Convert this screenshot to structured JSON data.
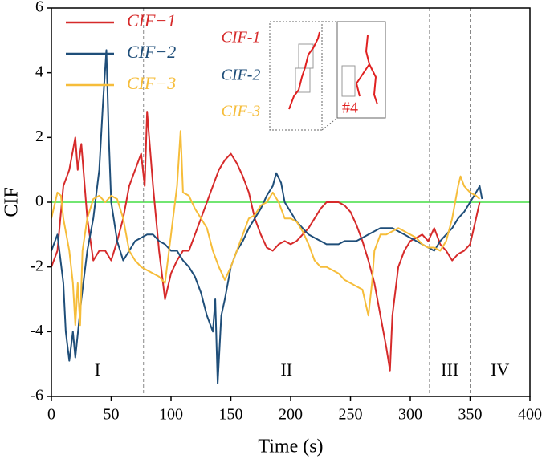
{
  "chart_data": {
    "type": "line",
    "xlabel": "Time (s)",
    "ylabel": "CIF",
    "xlim": [
      0,
      400
    ],
    "xticks": [
      0,
      50,
      100,
      150,
      200,
      250,
      300,
      350,
      400
    ],
    "ylim": [
      -6,
      6
    ],
    "yticks": [
      -6,
      -4,
      -2,
      0,
      2,
      4,
      6
    ],
    "hline": {
      "value": 0,
      "color": "#44dd44"
    },
    "vlines": [
      77,
      316,
      350
    ],
    "regions": [
      "I",
      "II",
      "III",
      "IV"
    ],
    "legend": "upper left",
    "series": [
      {
        "name": "CIF−1",
        "color": "#d62a2a",
        "x": [
          0,
          5,
          10,
          15,
          20,
          22,
          25,
          30,
          35,
          40,
          45,
          50,
          55,
          60,
          65,
          70,
          75,
          78,
          80,
          85,
          90,
          95,
          100,
          105,
          110,
          115,
          120,
          125,
          130,
          135,
          140,
          145,
          150,
          155,
          160,
          165,
          170,
          175,
          180,
          185,
          190,
          195,
          200,
          205,
          210,
          215,
          220,
          225,
          230,
          235,
          240,
          245,
          250,
          255,
          260,
          265,
          270,
          275,
          280,
          283,
          285,
          290,
          295,
          300,
          305,
          310,
          315,
          320,
          325,
          330,
          335,
          340,
          345,
          350,
          355,
          358
        ],
        "values": [
          -2,
          -1.5,
          0.5,
          1.0,
          2.0,
          1.0,
          1.8,
          -0.5,
          -1.8,
          -1.5,
          -1.5,
          -1.8,
          -1.2,
          -0.5,
          0.5,
          1.0,
          1.5,
          0.5,
          2.8,
          0.5,
          -1.5,
          -3.0,
          -2.2,
          -1.8,
          -1.5,
          -1.5,
          -1.0,
          -0.5,
          0,
          0.5,
          1.0,
          1.3,
          1.5,
          1.2,
          0.8,
          0.3,
          -0.5,
          -1.0,
          -1.4,
          -1.5,
          -1.3,
          -1.2,
          -1.3,
          -1.2,
          -1.0,
          -0.8,
          -0.5,
          -0.2,
          0,
          0,
          0,
          -0.1,
          -0.3,
          -0.7,
          -1.2,
          -1.8,
          -2.5,
          -3.5,
          -4.5,
          -5.2,
          -3.5,
          -2.0,
          -1.5,
          -1.2,
          -1.1,
          -1.0,
          -1.2,
          -0.8,
          -1.3,
          -1.5,
          -1.8,
          -1.6,
          -1.5,
          -1.3,
          -0.5,
          0
        ]
      },
      {
        "name": "CIF−2",
        "color": "#1f4e79",
        "x": [
          0,
          5,
          10,
          12,
          15,
          18,
          20,
          25,
          30,
          35,
          40,
          43,
          46,
          48,
          50,
          55,
          60,
          65,
          70,
          75,
          80,
          85,
          90,
          95,
          100,
          105,
          110,
          115,
          120,
          125,
          130,
          135,
          137,
          139,
          142,
          145,
          150,
          155,
          160,
          165,
          170,
          175,
          180,
          185,
          188,
          192,
          195,
          200,
          205,
          210,
          215,
          220,
          225,
          230,
          235,
          240,
          245,
          250,
          255,
          260,
          265,
          270,
          275,
          280,
          285,
          290,
          295,
          300,
          305,
          310,
          315,
          320,
          325,
          330,
          335,
          340,
          345,
          350,
          355,
          358,
          360
        ],
        "values": [
          -1.5,
          -1.0,
          -2.5,
          -4.0,
          -4.9,
          -4.0,
          -4.8,
          -3.0,
          -1.5,
          -0.5,
          1.0,
          3.0,
          4.7,
          2.0,
          0,
          -1.2,
          -1.8,
          -1.5,
          -1.2,
          -1.1,
          -1.0,
          -1.0,
          -1.2,
          -1.3,
          -1.5,
          -1.5,
          -1.8,
          -2.0,
          -2.3,
          -2.8,
          -3.5,
          -4.0,
          -3.0,
          -5.6,
          -3.5,
          -3.0,
          -2.0,
          -1.5,
          -1.2,
          -0.8,
          -0.5,
          -0.2,
          0.2,
          0.5,
          0.9,
          0.6,
          0,
          -0.3,
          -0.6,
          -0.8,
          -1.0,
          -1.1,
          -1.2,
          -1.3,
          -1.3,
          -1.3,
          -1.2,
          -1.2,
          -1.2,
          -1.1,
          -1.0,
          -0.9,
          -0.8,
          -0.8,
          -0.8,
          -0.9,
          -1.0,
          -1.1,
          -1.2,
          -1.3,
          -1.4,
          -1.5,
          -1.2,
          -1.0,
          -0.8,
          -0.5,
          -0.3,
          0,
          0.3,
          0.5,
          0.1
        ]
      },
      {
        "name": "CIF−3",
        "color": "#f6bd3a",
        "x": [
          0,
          5,
          8,
          10,
          15,
          18,
          20,
          22,
          24,
          26,
          30,
          35,
          40,
          45,
          50,
          55,
          60,
          65,
          70,
          75,
          80,
          85,
          90,
          95,
          100,
          105,
          108,
          110,
          115,
          120,
          125,
          130,
          135,
          140,
          145,
          150,
          155,
          160,
          165,
          170,
          175,
          180,
          185,
          190,
          195,
          200,
          205,
          210,
          215,
          220,
          225,
          230,
          235,
          240,
          245,
          250,
          255,
          260,
          265,
          268,
          270,
          275,
          280,
          285,
          290,
          295,
          300,
          305,
          310,
          315,
          320,
          325,
          330,
          335,
          340,
          342,
          345,
          350,
          355,
          358
        ],
        "values": [
          -0.5,
          0.3,
          0.2,
          -0.5,
          -1.5,
          -2.5,
          -3.8,
          -2.5,
          -3.8,
          -1.5,
          -0.5,
          0.1,
          0.2,
          0,
          0.2,
          0.1,
          -0.5,
          -1.5,
          -1.8,
          -2.0,
          -2.1,
          -2.2,
          -2.3,
          -2.5,
          -1.0,
          0.5,
          2.2,
          0.3,
          0.2,
          -0.2,
          -0.5,
          -0.8,
          -1.5,
          -2.0,
          -2.4,
          -2.0,
          -1.5,
          -1.0,
          -0.5,
          -0.4,
          -0.1,
          0,
          0.3,
          0,
          -0.5,
          -0.5,
          -0.6,
          -0.9,
          -1.3,
          -1.8,
          -2.0,
          -2.0,
          -2.1,
          -2.2,
          -2.4,
          -2.5,
          -2.6,
          -2.7,
          -3.5,
          -2.5,
          -1.5,
          -1.0,
          -1.0,
          -0.9,
          -0.8,
          -0.9,
          -1.0,
          -1.1,
          -1.3,
          -1.4,
          -1.4,
          -1.5,
          -1.2,
          -0.5,
          0.5,
          0.8,
          0.5,
          0.3,
          0.2,
          0.1
        ]
      }
    ]
  },
  "inset": {
    "labels": [
      "CIF-1",
      "CIF-2",
      "CIF-3"
    ],
    "tag": "#4"
  }
}
